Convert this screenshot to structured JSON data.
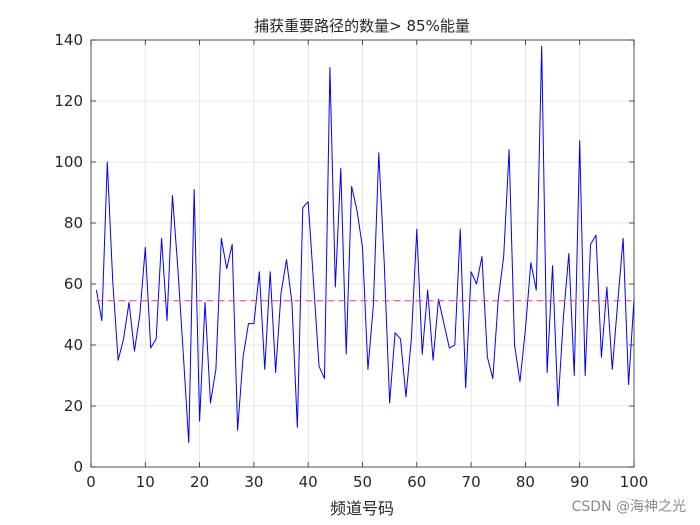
{
  "chart_data": {
    "type": "line",
    "title": "捕获重要路径的数量> 85%能量",
    "xlabel": "频道号码",
    "ylabel": "",
    "xlim": [
      0,
      100
    ],
    "ylim": [
      0,
      140
    ],
    "xticks": [
      0,
      10,
      20,
      30,
      40,
      50,
      60,
      70,
      80,
      90,
      100
    ],
    "yticks": [
      0,
      20,
      40,
      60,
      80,
      100,
      120,
      140
    ],
    "grid": true,
    "series": [
      {
        "color": "#0000ff",
        "style": "solid",
        "x": [
          1,
          2,
          3,
          4,
          5,
          6,
          7,
          8,
          9,
          10,
          11,
          12,
          13,
          14,
          15,
          16,
          17,
          18,
          19,
          20,
          21,
          22,
          23,
          24,
          25,
          26,
          27,
          28,
          29,
          30,
          31,
          32,
          33,
          34,
          35,
          36,
          37,
          38,
          39,
          40,
          41,
          42,
          43,
          44,
          45,
          46,
          47,
          48,
          49,
          50,
          51,
          52,
          53,
          54,
          55,
          56,
          57,
          58,
          59,
          60,
          61,
          62,
          63,
          64,
          65,
          66,
          67,
          68,
          69,
          70,
          71,
          72,
          73,
          74,
          75,
          76,
          77,
          78,
          79,
          80,
          81,
          82,
          83,
          84,
          85,
          86,
          87,
          88,
          89,
          90,
          91,
          92,
          93,
          94,
          95,
          96,
          97,
          98,
          99,
          100
        ],
        "values": [
          58,
          48,
          100,
          61,
          35,
          42,
          54,
          38,
          50,
          72,
          39,
          42,
          75,
          48,
          89,
          65,
          37,
          8,
          91,
          15,
          54,
          21,
          32,
          75,
          65,
          73,
          12,
          36,
          47,
          47,
          64,
          32,
          64,
          31,
          57,
          68,
          54,
          13,
          85,
          87,
          60,
          33,
          29,
          131,
          59,
          98,
          37,
          92,
          84,
          72,
          32,
          53,
          103,
          67,
          21,
          44,
          42,
          23,
          42,
          78,
          37,
          58,
          35,
          55,
          47,
          39,
          40,
          78,
          26,
          64,
          60,
          69,
          36,
          29,
          55,
          69,
          104,
          40,
          28,
          45,
          67,
          58,
          138,
          31,
          66,
          20,
          49,
          70,
          30,
          107,
          30,
          73,
          76,
          36,
          59,
          32,
          54,
          75,
          27,
          55
        ]
      },
      {
        "color": "#e0406a",
        "style": "dashed",
        "x": [
          1,
          100
        ],
        "values": [
          54.5,
          54.5
        ]
      }
    ]
  },
  "watermark": "CSDN @海神之光"
}
